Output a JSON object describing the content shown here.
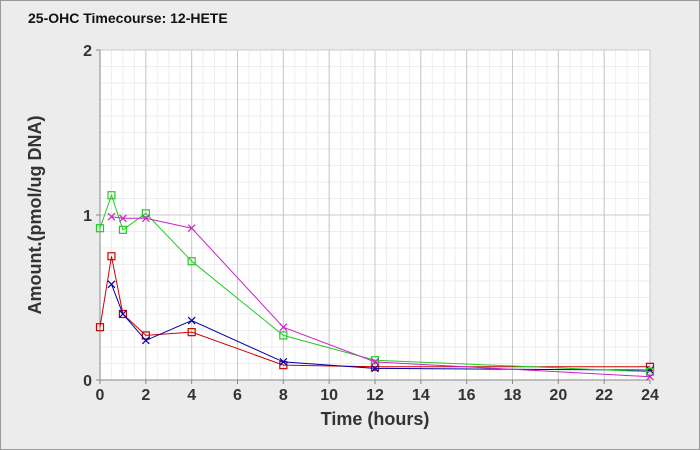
{
  "title": "25-OHC Timecourse: 12-HETE",
  "chart_data": {
    "type": "line",
    "title": "25-OHC Timecourse: 12-HETE",
    "xlabel": "Time (hours)",
    "ylabel": "Amount.(pmol/ug DNA)",
    "xlim": [
      0,
      24
    ],
    "ylim": [
      0,
      2
    ],
    "xticks": [
      0,
      2,
      4,
      6,
      8,
      10,
      12,
      14,
      16,
      18,
      20,
      22,
      24
    ],
    "yticks": [
      0,
      1,
      2
    ],
    "grid": true,
    "legend": "none",
    "series": [
      {
        "color": "#cc0000",
        "marker": "square",
        "x": [
          0,
          0.5,
          1,
          2,
          4,
          8,
          12,
          24
        ],
        "y": [
          0.32,
          0.75,
          0.4,
          0.27,
          0.29,
          0.09,
          0.08,
          0.08
        ]
      },
      {
        "color": "#0000aa",
        "marker": "x",
        "x": [
          0.5,
          1,
          2,
          4,
          8,
          12,
          24
        ],
        "y": [
          0.58,
          0.4,
          0.24,
          0.36,
          0.11,
          0.07,
          0.06
        ]
      },
      {
        "color": "#22cc22",
        "marker": "square",
        "x": [
          0,
          0.5,
          1,
          2,
          4,
          8,
          12,
          24
        ],
        "y": [
          0.92,
          1.12,
          0.91,
          1.01,
          0.72,
          0.27,
          0.12,
          0.05
        ]
      },
      {
        "color": "#cc22cc",
        "marker": "x",
        "x": [
          0.5,
          1,
          2,
          4,
          8,
          12,
          24
        ],
        "y": [
          0.99,
          0.98,
          0.98,
          0.92,
          0.32,
          0.11,
          0.02
        ]
      }
    ]
  }
}
